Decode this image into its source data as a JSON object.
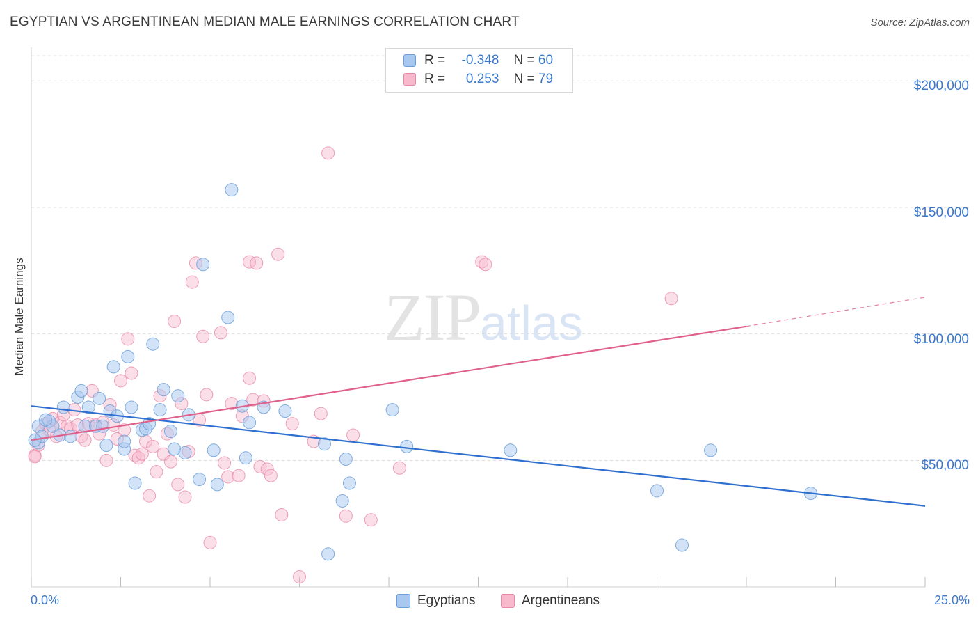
{
  "title": "EGYPTIAN VS ARGENTINEAN MEDIAN MALE EARNINGS CORRELATION CHART",
  "source": "Source: ZipAtlas.com",
  "watermark": {
    "part1": "ZIP",
    "part2": "atlas"
  },
  "legend": {
    "rows": [
      {
        "r_label": "R =",
        "r_value": "-0.348",
        "n_label": "N =",
        "n_value": "60"
      },
      {
        "r_label": "R =",
        "r_value": "0.253",
        "n_label": "N =",
        "n_value": "79"
      }
    ]
  },
  "bottom_legend": [
    "Egyptians",
    "Argentineans"
  ],
  "colors": {
    "egyptians_fill": "#a8c8f0",
    "egyptians_stroke": "#6b9fd8",
    "egyptians_line": "#2f6fd0",
    "argentineans_fill": "#f7b9cb",
    "argentineans_stroke": "#e889a8",
    "argentineans_line": "#e0608c",
    "tick_text": "#3b78cc"
  },
  "chart_data": {
    "type": "scatter",
    "title": "EGYPTIAN VS ARGENTINEAN MEDIAN MALE EARNINGS CORRELATION CHART",
    "xlabel": "",
    "ylabel": "Median Male Earnings",
    "xlim": [
      0,
      25
    ],
    "ylim": [
      0,
      210000
    ],
    "x_tick_labels": [
      "0.0%",
      "25.0%"
    ],
    "y_ticks": [
      50000,
      100000,
      150000,
      200000
    ],
    "y_tick_labels": [
      "$50,000",
      "$100,000",
      "$150,000",
      "$200,000"
    ],
    "grid": true,
    "legend_position": "top-center",
    "series": [
      {
        "name": "Egyptians",
        "r": -0.348,
        "n": 60,
        "trend": {
          "x0": 0,
          "y0": 71500,
          "x1": 25,
          "y1": 32000
        },
        "points": [
          [
            0.2,
            63500
          ],
          [
            0.2,
            57000
          ],
          [
            0.3,
            59500
          ],
          [
            0.5,
            65500
          ],
          [
            0.6,
            63500
          ],
          [
            0.8,
            60000
          ],
          [
            0.9,
            71000
          ],
          [
            1.1,
            59500
          ],
          [
            1.3,
            75000
          ],
          [
            1.4,
            77500
          ],
          [
            1.5,
            63500
          ],
          [
            1.6,
            71000
          ],
          [
            1.8,
            63500
          ],
          [
            1.9,
            74500
          ],
          [
            2.0,
            63500
          ],
          [
            2.1,
            56000
          ],
          [
            2.2,
            69500
          ],
          [
            2.3,
            87000
          ],
          [
            2.4,
            67500
          ],
          [
            2.6,
            54500
          ],
          [
            2.6,
            57500
          ],
          [
            2.7,
            91000
          ],
          [
            2.8,
            71000
          ],
          [
            2.9,
            41000
          ],
          [
            3.1,
            62000
          ],
          [
            3.2,
            62500
          ],
          [
            3.3,
            64500
          ],
          [
            3.4,
            96000
          ],
          [
            3.6,
            70000
          ],
          [
            3.7,
            78000
          ],
          [
            3.9,
            61500
          ],
          [
            4.0,
            54500
          ],
          [
            4.1,
            75500
          ],
          [
            4.3,
            53000
          ],
          [
            4.4,
            68000
          ],
          [
            4.7,
            42500
          ],
          [
            4.8,
            127500
          ],
          [
            5.1,
            54000
          ],
          [
            5.2,
            40500
          ],
          [
            5.5,
            106500
          ],
          [
            5.6,
            157000
          ],
          [
            5.9,
            71500
          ],
          [
            6.0,
            51000
          ],
          [
            6.1,
            65000
          ],
          [
            6.5,
            71000
          ],
          [
            7.1,
            69500
          ],
          [
            8.2,
            56500
          ],
          [
            8.3,
            13000
          ],
          [
            8.7,
            34000
          ],
          [
            8.8,
            50500
          ],
          [
            8.9,
            41000
          ],
          [
            10.1,
            70000
          ],
          [
            10.5,
            55500
          ],
          [
            13.4,
            54000
          ],
          [
            17.5,
            38000
          ],
          [
            18.2,
            16500
          ],
          [
            19.0,
            54000
          ],
          [
            21.8,
            37000
          ],
          [
            0.1,
            58000
          ],
          [
            0.4,
            66000
          ]
        ]
      },
      {
        "name": "Argentineans",
        "r": 0.253,
        "n": 79,
        "trend": {
          "x0": 0,
          "y0": 58000,
          "x1": 20,
          "y1": 103000,
          "dash_x1": 25,
          "dash_y1": 114500
        },
        "points": [
          [
            0.1,
            52000
          ],
          [
            0.2,
            56000
          ],
          [
            0.3,
            61500
          ],
          [
            0.4,
            64500
          ],
          [
            0.5,
            62000
          ],
          [
            0.6,
            66500
          ],
          [
            0.7,
            59500
          ],
          [
            0.8,
            65000
          ],
          [
            0.9,
            68000
          ],
          [
            1.0,
            63500
          ],
          [
            1.1,
            62500
          ],
          [
            1.2,
            70000
          ],
          [
            1.3,
            64000
          ],
          [
            1.4,
            59500
          ],
          [
            1.5,
            58000
          ],
          [
            1.6,
            64500
          ],
          [
            1.7,
            77500
          ],
          [
            1.8,
            64000
          ],
          [
            1.9,
            60500
          ],
          [
            2.0,
            65000
          ],
          [
            2.1,
            50000
          ],
          [
            2.2,
            72000
          ],
          [
            2.3,
            64000
          ],
          [
            2.4,
            58500
          ],
          [
            2.5,
            81500
          ],
          [
            2.6,
            62000
          ],
          [
            2.7,
            98000
          ],
          [
            2.8,
            84500
          ],
          [
            2.9,
            52000
          ],
          [
            3.0,
            51000
          ],
          [
            3.1,
            52500
          ],
          [
            3.2,
            57500
          ],
          [
            3.3,
            36000
          ],
          [
            3.4,
            55500
          ],
          [
            3.5,
            45500
          ],
          [
            3.6,
            75500
          ],
          [
            3.7,
            52500
          ],
          [
            3.8,
            60500
          ],
          [
            3.9,
            49500
          ],
          [
            4.0,
            105000
          ],
          [
            4.1,
            40500
          ],
          [
            4.2,
            72500
          ],
          [
            4.3,
            35500
          ],
          [
            4.4,
            53500
          ],
          [
            4.5,
            120500
          ],
          [
            4.6,
            128000
          ],
          [
            4.7,
            66000
          ],
          [
            4.8,
            99000
          ],
          [
            4.9,
            76000
          ],
          [
            5.0,
            17500
          ],
          [
            5.3,
            100500
          ],
          [
            5.4,
            49000
          ],
          [
            5.5,
            43500
          ],
          [
            5.6,
            72500
          ],
          [
            5.8,
            44000
          ],
          [
            5.9,
            67500
          ],
          [
            6.1,
            128500
          ],
          [
            6.1,
            82500
          ],
          [
            6.2,
            74000
          ],
          [
            6.3,
            128000
          ],
          [
            6.4,
            47500
          ],
          [
            6.5,
            73500
          ],
          [
            6.6,
            46500
          ],
          [
            6.7,
            44000
          ],
          [
            6.9,
            131500
          ],
          [
            7.0,
            28500
          ],
          [
            7.3,
            64500
          ],
          [
            7.5,
            4000
          ],
          [
            7.9,
            57500
          ],
          [
            8.1,
            68500
          ],
          [
            8.3,
            171500
          ],
          [
            8.8,
            28000
          ],
          [
            9.0,
            60000
          ],
          [
            9.5,
            26500
          ],
          [
            10.3,
            47000
          ],
          [
            12.6,
            128500
          ],
          [
            12.7,
            127500
          ],
          [
            17.9,
            114000
          ],
          [
            0.1,
            51500
          ]
        ]
      }
    ]
  }
}
